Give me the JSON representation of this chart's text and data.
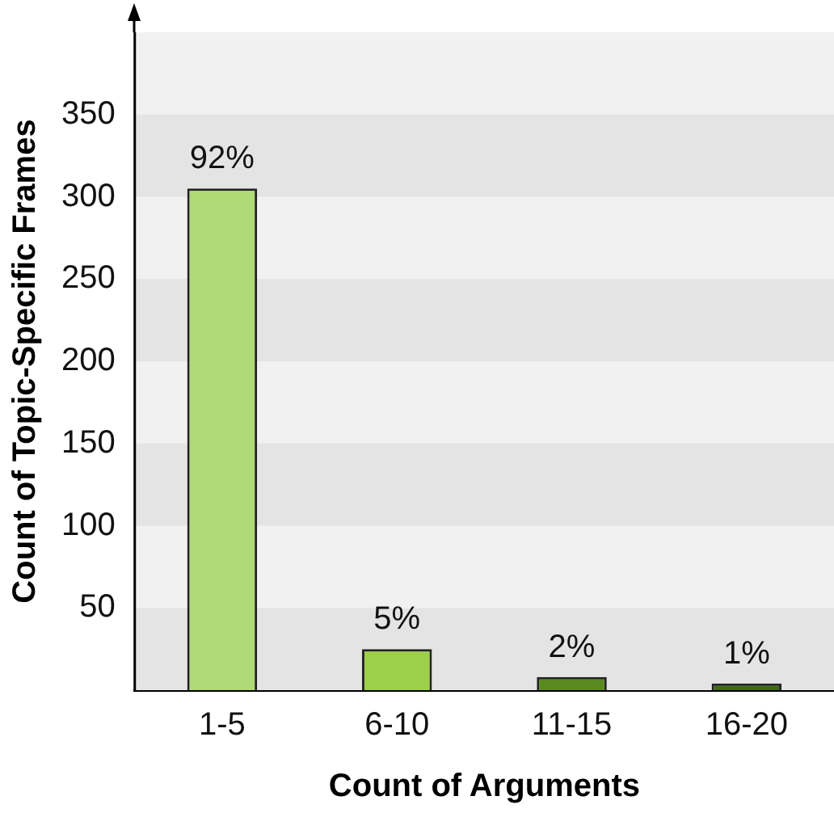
{
  "chart_data": {
    "type": "bar",
    "xlabel": "Count of Arguments",
    "ylabel": "Count of Topic-Specific Frames",
    "categories": [
      "1-5",
      "6-10",
      "11-15",
      "16-20"
    ],
    "values": [
      305,
      25,
      8,
      4
    ],
    "colors": [
      "#b0da76",
      "#9ccf4a",
      "#5a8a1e",
      "#3f6b14"
    ],
    "annotations": [
      {
        "text": "92%",
        "x": "1-5",
        "y": 305
      },
      {
        "text": "5%",
        "x": "6-10",
        "y": 25
      },
      {
        "text": "2%",
        "x": "11-15",
        "y": 8
      },
      {
        "text": "1%",
        "x": "16-20",
        "y": 4
      }
    ],
    "bands": [
      {
        "axis": "y",
        "from": 0,
        "to": 50,
        "color": "#e4e4e4"
      },
      {
        "axis": "y",
        "from": 100,
        "to": 150,
        "color": "#e4e4e4"
      },
      {
        "axis": "y",
        "from": 200,
        "to": 250,
        "color": "#e4e4e4"
      },
      {
        "axis": "y",
        "from": 300,
        "to": 350,
        "color": "#e4e4e4"
      }
    ],
    "ylim": [
      0,
      400
    ],
    "yticks": [
      50,
      100,
      150,
      200,
      250,
      300,
      350
    ],
    "legend": false
  }
}
